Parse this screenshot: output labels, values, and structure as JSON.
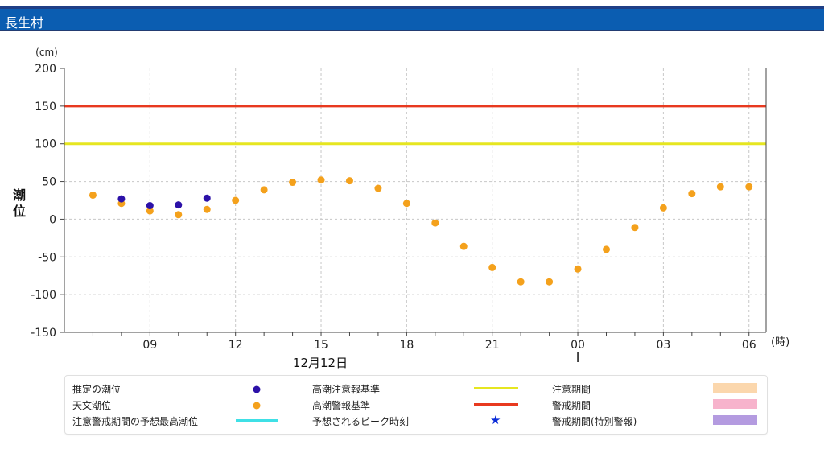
{
  "header": {
    "title": "長生村"
  },
  "chart_data": {
    "type": "scatter",
    "ylabel": "潮位",
    "yunit": "(cm)",
    "xunit": "(時)",
    "ylim": [
      -150,
      200
    ],
    "yticks": [
      200,
      150,
      100,
      50,
      0,
      -50,
      -100,
      -150
    ],
    "xtick_labels": [
      {
        "hour": 9,
        "label": "09"
      },
      {
        "hour": 12,
        "label": "12"
      },
      {
        "hour": 15,
        "label": "15"
      },
      {
        "hour": 18,
        "label": "18"
      },
      {
        "hour": 21,
        "label": "21"
      },
      {
        "hour": 24,
        "label": "00"
      },
      {
        "hour": 27,
        "label": "03"
      },
      {
        "hour": 30,
        "label": "06"
      }
    ],
    "date_label": "12月12日",
    "grid": true,
    "reference_lines": [
      {
        "name": "高潮警報基準",
        "value": 150,
        "color": "#e8391f"
      },
      {
        "name": "高潮注意報基準",
        "value": 100,
        "color": "#e6e620"
      }
    ],
    "series": [
      {
        "name": "天文潮位",
        "color": "#f4a11c",
        "x": [
          7,
          8,
          9,
          10,
          11,
          12,
          13,
          14,
          15,
          16,
          17,
          18,
          19,
          20,
          21,
          22,
          23,
          24,
          25,
          26,
          27,
          28,
          29,
          30
        ],
        "y": [
          32,
          21,
          11,
          6,
          13,
          25,
          39,
          49,
          52,
          51,
          41,
          21,
          -5,
          -36,
          -64,
          -83,
          -83,
          -66,
          -40,
          -11,
          15,
          34,
          43,
          43
        ]
      },
      {
        "name": "推定の潮位",
        "color": "#2c11a8",
        "x": [
          8,
          9,
          10,
          11
        ],
        "y": [
          27,
          18,
          19,
          28
        ]
      }
    ]
  },
  "legend": {
    "estimated": "推定の潮位",
    "astronomical": "天文潮位",
    "forecast_max": "注意警戒期間の予想最高潮位",
    "caution_level": "高潮注意報基準",
    "warning_level": "高潮警報基準",
    "peak_time": "予想されるピーク時刻",
    "caution_period": "注意期間",
    "warning_period": "警戒期間",
    "special_warning_period": "警戒期間(特別警報)",
    "star_glyph": "★",
    "colors": {
      "estimated": "#2c11a8",
      "astronomical": "#f4a11c",
      "forecast_max": "#3fe0e6",
      "caution_level": "#e6e620",
      "warning_level": "#e8391f",
      "peak_time": "#0a2bd8",
      "caution_period": "#fbd7ad",
      "warning_period": "#f7b3cc",
      "special_warning_period": "#b49be0"
    }
  }
}
